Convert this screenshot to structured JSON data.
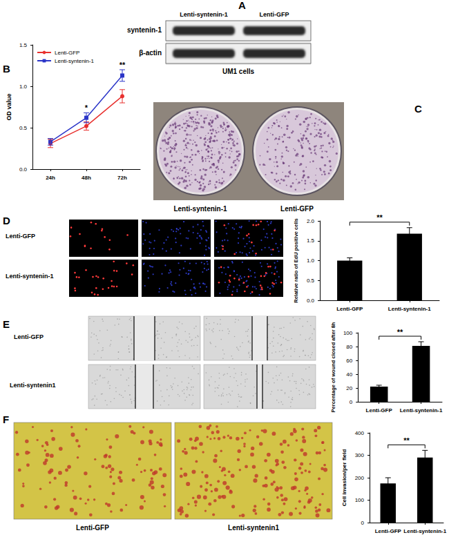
{
  "figure": {
    "A": {
      "letter": "A",
      "lanes": [
        "Lenti-syntenin-1",
        "Lenti-GFP"
      ],
      "rows": [
        "syntenin-1",
        "β-actin"
      ],
      "caption": "UM1 cells"
    },
    "B": {
      "letter": "B"
    },
    "C": {
      "letter": "C",
      "labels": [
        "Lenti-syntenin-1",
        "Lenti-GFP"
      ]
    },
    "D": {
      "letter": "D",
      "rows": [
        "Lenti-GFP",
        "Lenti-syntenin-1"
      ]
    },
    "E": {
      "letter": "E",
      "rows": [
        "Lenti-GFP",
        "Lenti-syntenin1"
      ]
    },
    "F": {
      "letter": "F",
      "labels": [
        "Lenti-GFP",
        "Lenti-syntenin1"
      ]
    }
  },
  "chart_data": [
    {
      "type": "line",
      "ylabel": "OD value",
      "categories": [
        "24h",
        "48h",
        "72h"
      ],
      "ylim": [
        0,
        1.5
      ],
      "yticks": [
        {
          "value": 0,
          "label": "0.0"
        },
        {
          "value": 0.5,
          "label": "0.5"
        },
        {
          "value": 1,
          "label": "1.0"
        },
        {
          "value": 1.5,
          "label": "1.5"
        }
      ],
      "grid": false,
      "legend": "top-left",
      "series": [
        {
          "name": "Lenti-GFP",
          "color": "#e8302e",
          "marker": "circle",
          "values": [
            0.31,
            0.52,
            0.88
          ],
          "errors": [
            0.05,
            0.05,
            0.08
          ]
        },
        {
          "name": "Lenti-syntenin-1",
          "color": "#2b35c8",
          "marker": "square",
          "values": [
            0.33,
            0.62,
            1.13
          ],
          "errors": [
            0.04,
            0.06,
            0.07
          ]
        }
      ],
      "annotations": [
        {
          "category": "48h",
          "text": "*"
        },
        {
          "category": "72h",
          "text": "**"
        }
      ]
    },
    {
      "type": "bar",
      "ylabel": "Relative ratio of EdU positive cells",
      "categories": [
        "Lenti-GFP",
        "Lenti-syntenin-1"
      ],
      "values": [
        1.0,
        1.68
      ],
      "errors": [
        0.07,
        0.15
      ],
      "color": "#000000",
      "grid": false,
      "ylim": [
        0,
        2
      ],
      "yticks": [
        {
          "value": 0,
          "label": "0.0"
        },
        {
          "value": 0.5,
          "label": "0.5"
        },
        {
          "value": 1,
          "label": "1.0"
        },
        {
          "value": 1.5,
          "label": "1.5"
        },
        {
          "value": 2,
          "label": "2.0"
        }
      ],
      "annotations": [
        {
          "between": [
            "Lenti-GFP",
            "Lenti-syntenin-1"
          ],
          "text": "**"
        }
      ]
    },
    {
      "type": "bar",
      "ylabel": "Percentage of wound closed after 8h",
      "categories": [
        "Lenti-GFP",
        "Lenti-syntenin-1"
      ],
      "values": [
        22,
        81
      ],
      "errors": [
        2,
        6
      ],
      "color": "#000000",
      "grid": false,
      "ylim": [
        0,
        100
      ],
      "yticks": [
        0,
        20,
        40,
        60,
        80,
        100
      ],
      "annotations": [
        {
          "between": [
            "Lenti-GFP",
            "Lenti-syntenin-1"
          ],
          "text": "**"
        }
      ]
    },
    {
      "type": "bar",
      "ylabel": "Cell invasion/per field",
      "categories": [
        "Lenti-GFP",
        "Lenti-syntenin-1"
      ],
      "values": [
        175,
        290
      ],
      "errors": [
        25,
        32
      ],
      "color": "#000000",
      "grid": false,
      "ylim": [
        0,
        400
      ],
      "yticks": [
        0,
        100,
        200,
        300,
        400
      ],
      "annotations": [
        {
          "between": [
            "Lenti-GFP",
            "Lenti-syntenin-1"
          ],
          "text": "**"
        }
      ]
    }
  ]
}
